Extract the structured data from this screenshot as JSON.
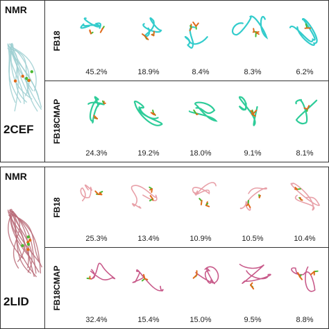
{
  "panels": [
    {
      "nmr_title": "NMR",
      "pdb_id": "2CEF",
      "bundle_color": "#9ecfd1",
      "rows": [
        {
          "method": "FB18",
          "color": "#33cccc",
          "percents": [
            "45.2%",
            "18.9%",
            "8.4%",
            "8.3%",
            "6.2%"
          ]
        },
        {
          "method": "FB18CMAP",
          "color": "#2ecc99",
          "percents": [
            "24.3%",
            "19.2%",
            "18.0%",
            "9.1%",
            "8.1%"
          ]
        }
      ]
    },
    {
      "nmr_title": "NMR",
      "pdb_id": "2LID",
      "bundle_color": "#b86b78",
      "rows": [
        {
          "method": "FB18",
          "color": "#e8a0a8",
          "percents": [
            "25.3%",
            "13.4%",
            "10.9%",
            "10.5%",
            "10.4%"
          ]
        },
        {
          "method": "FB18CMAP",
          "color": "#c85a8a",
          "percents": [
            "32.4%",
            "15.4%",
            "15.0%",
            "9.5%",
            "8.8%"
          ]
        }
      ]
    }
  ],
  "colors": {
    "sidechain_orange": "#e06a1a",
    "sidechain_green": "#4ab830",
    "border": "#333333"
  }
}
